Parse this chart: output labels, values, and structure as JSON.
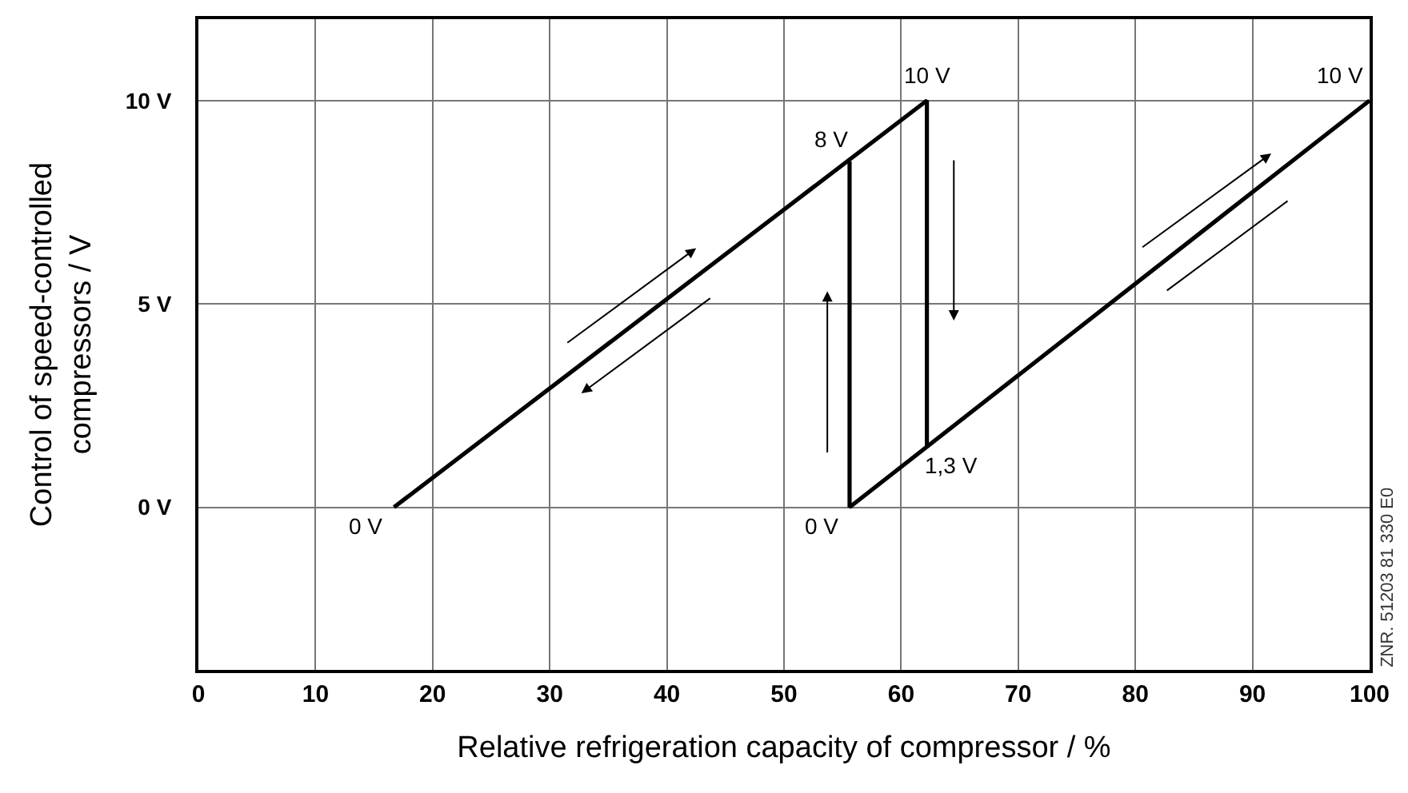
{
  "chart_data": {
    "type": "line",
    "xlabel": "Relative refrigeration capacity of compressor / %",
    "ylabel": "Control of speed-controlled\ncompressors / V",
    "series": [
      {
        "color": "#000000",
        "x": [
          16.7,
          62.2,
          62.2
        ],
        "values": [
          0,
          10,
          1.5
        ]
      },
      {
        "color": "#000000",
        "x": [
          55.6,
          55.6,
          100
        ],
        "values": [
          8.5,
          0,
          10
        ]
      }
    ],
    "xlim": [
      0,
      100
    ],
    "xticks": [
      0,
      10,
      20,
      30,
      40,
      50,
      60,
      70,
      80,
      90,
      100
    ],
    "ylim": [
      -4,
      12
    ],
    "yticks": [
      {
        "value": 0,
        "label": "0 V"
      },
      {
        "value": 5,
        "label": "5 V"
      },
      {
        "value": 10,
        "label": "10 V"
      }
    ],
    "grid": true,
    "marker": "none",
    "line_style": "solid",
    "annotations": [
      {
        "text": "0 V",
        "x": 16.7,
        "y": 0
      },
      {
        "text": "8 V",
        "x": 55.6,
        "y": 8.5
      },
      {
        "text": "10 V",
        "x": 62.2,
        "y": 10
      },
      {
        "text": "0 V",
        "x": 55.6,
        "y": 0
      },
      {
        "text": "1,3 V",
        "x": 62.2,
        "y": 1.5
      },
      {
        "text": "10 V",
        "x": 100,
        "y": 10
      },
      "ZNR. 51203 81 330 E0"
    ]
  }
}
